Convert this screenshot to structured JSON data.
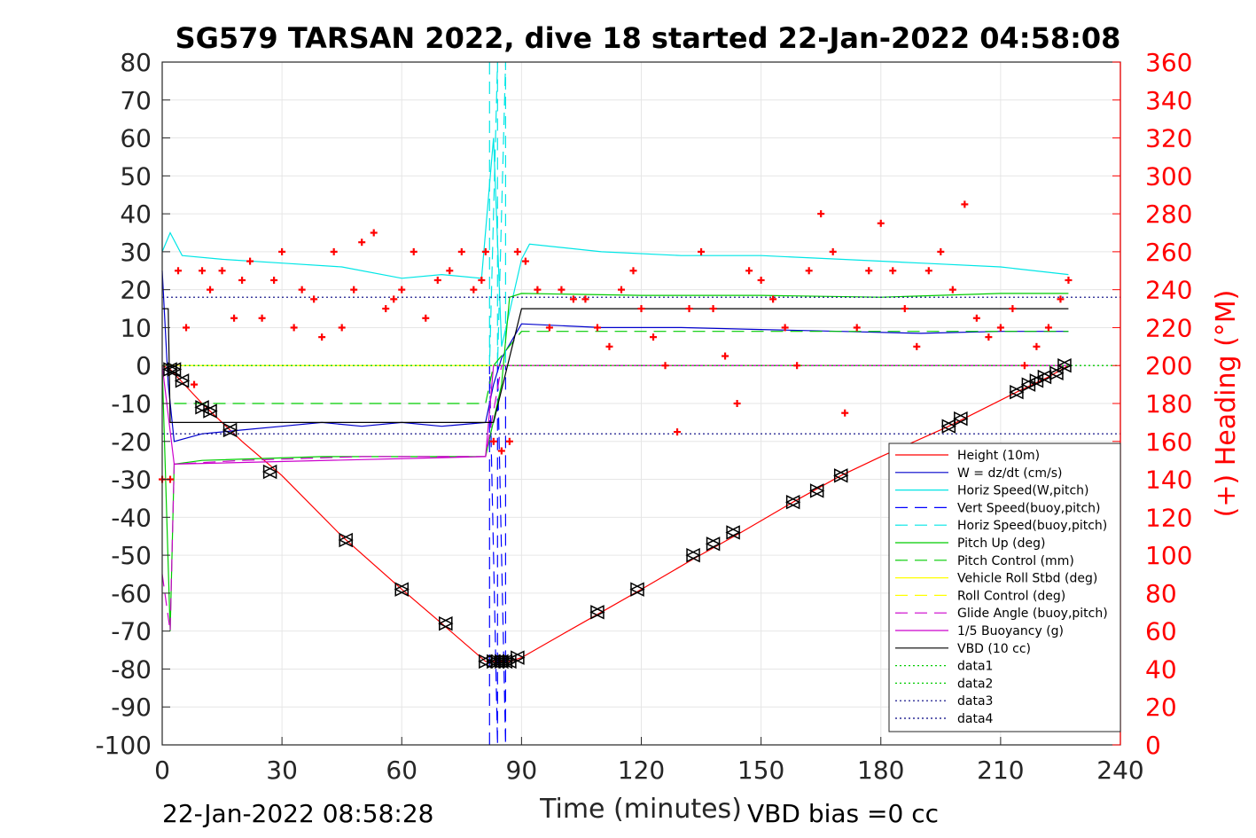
{
  "chart_data": {
    "type": "line",
    "title": "SG579 TARSAN 2022, dive 18 started 22-Jan-2022 04:58:08",
    "xlabel": "Time (minutes)",
    "ylabel_right": "(+) Heading (°M)",
    "xlim": [
      0,
      240
    ],
    "ylim_left": [
      -100,
      80
    ],
    "ylim_right": [
      0,
      360
    ],
    "x_ticks": [
      "0",
      "30",
      "60",
      "90",
      "120",
      "150",
      "180",
      "210",
      "240"
    ],
    "y_ticks_left": [
      "80",
      "70",
      "60",
      "50",
      "40",
      "30",
      "20",
      "10",
      "0",
      "-10",
      "-20",
      "-30",
      "-40",
      "-50",
      "-60",
      "-70",
      "-80",
      "-90",
      "-100"
    ],
    "y_ticks_right": [
      "360",
      "340",
      "320",
      "300",
      "280",
      "260",
      "240",
      "220",
      "200",
      "180",
      "160",
      "140",
      "120",
      "100",
      "80",
      "60",
      "40",
      "20",
      "0"
    ],
    "grid": true,
    "legend_position": "bottom-right",
    "footer_left": "22-Jan-2022 08:58:28",
    "footer_right": "VBD bias =0 cc",
    "series": [
      {
        "name": "Height (10m)",
        "color": "#ff0000",
        "style": "solid",
        "x": [
          0,
          2,
          10,
          20,
          30,
          45,
          60,
          70,
          81,
          84,
          87,
          90,
          100,
          110,
          120,
          133,
          145,
          158,
          170,
          180,
          197,
          214,
          222,
          227
        ],
        "y": [
          0,
          -1,
          -10,
          -20,
          -29,
          -45,
          -59,
          -68,
          -78,
          -78,
          -78,
          -77,
          -71,
          -65,
          -59,
          -51,
          -44,
          -36,
          -29,
          -24,
          -16,
          -7,
          -3,
          0
        ]
      },
      {
        "name": "W = dz/dt (cm/s)",
        "color": "#0000cc",
        "style": "solid",
        "x": [
          0,
          1.5,
          3,
          10,
          20,
          30,
          40,
          50,
          60,
          70,
          81,
          83,
          85,
          90,
          110,
          130,
          150,
          170,
          190,
          210,
          227
        ],
        "y": [
          25,
          -5,
          -20,
          -18,
          -17,
          -16,
          -15,
          -16,
          -15,
          -16,
          -15,
          -5,
          2,
          11,
          10,
          10,
          9.5,
          9,
          8.5,
          9,
          9
        ]
      },
      {
        "name": "Horiz Speed(W,pitch)",
        "color": "#00e6e6",
        "style": "solid",
        "x": [
          0,
          2,
          5,
          15,
          30,
          45,
          60,
          70,
          80,
          83,
          85,
          90,
          92,
          110,
          130,
          150,
          170,
          190,
          210,
          227
        ],
        "y": [
          30,
          35,
          29,
          28,
          27,
          26,
          23,
          24,
          23,
          60,
          5,
          28,
          32,
          30,
          29,
          29,
          28,
          27,
          26,
          24
        ]
      },
      {
        "name": "Vert Speed(buoy,pitch)",
        "color": "#0000ff",
        "style": "dashed",
        "x": [
          82,
          82,
          84,
          84,
          86,
          86
        ],
        "y": [
          -100,
          0,
          -100,
          0,
          -100,
          0
        ]
      },
      {
        "name": "Horiz Speed(buoy,pitch)",
        "color": "#00e6e6",
        "style": "dashed",
        "x": [
          82,
          82,
          84,
          84,
          86,
          86
        ],
        "y": [
          80,
          0,
          80,
          0,
          80,
          0
        ]
      },
      {
        "name": "Pitch Up (deg)",
        "color": "#00cc00",
        "style": "solid",
        "x": [
          0,
          2,
          3,
          10,
          40,
          70,
          81,
          85,
          87,
          90,
          120,
          150,
          180,
          210,
          227
        ],
        "y": [
          0,
          -70,
          -26,
          -25,
          -24,
          -24,
          -24,
          -5,
          18,
          19,
          18.5,
          18.5,
          18,
          19,
          19
        ]
      },
      {
        "name": "Pitch Control (mm)",
        "color": "#00cc00",
        "style": "dashed",
        "x": [
          3,
          81,
          83,
          90,
          227
        ],
        "y": [
          -10,
          -10,
          0,
          9,
          9
        ]
      },
      {
        "name": "Vehicle Roll Stbd (deg)",
        "color": "#ffff00",
        "style": "solid",
        "x": [
          0,
          5,
          100,
          200,
          227
        ],
        "y": [
          0,
          0,
          0,
          0,
          0
        ]
      },
      {
        "name": "Roll Control (deg)",
        "color": "#ffff00",
        "style": "dashed",
        "x": [
          0,
          227
        ],
        "y": [
          0,
          0
        ]
      },
      {
        "name": "Glide Angle (buoy,pitch)",
        "color": "#cc00cc",
        "style": "dashed",
        "x": [
          0,
          2,
          3,
          20,
          50,
          81,
          85,
          90,
          227
        ],
        "y": [
          -55,
          -70,
          -26,
          -25,
          -24,
          -24,
          0,
          0,
          0
        ]
      },
      {
        "name": "1/5 Buoyancy (g)",
        "color": "#cc00cc",
        "style": "solid",
        "x": [
          0,
          3,
          81,
          83,
          90,
          227
        ],
        "y": [
          0,
          -26,
          -24,
          0,
          0,
          0
        ]
      },
      {
        "name": "VBD (10 cc)",
        "color": "#000000",
        "style": "solid",
        "x": [
          0,
          1.5,
          2,
          80,
          81.5,
          83,
          90,
          227
        ],
        "y": [
          15,
          15,
          -15,
          -15,
          -15,
          -15,
          15,
          15
        ]
      },
      {
        "name": "data1",
        "color": "#00cc00",
        "style": "dotted",
        "x": [
          0,
          240
        ],
        "y": [
          0,
          0
        ]
      },
      {
        "name": "data2",
        "color": "#00cc00",
        "style": "dotted",
        "x": [
          0,
          240
        ],
        "y": [
          0,
          0
        ]
      },
      {
        "name": "data3",
        "color": "#000080",
        "style": "dotted",
        "x": [
          0,
          240
        ],
        "y": [
          18,
          18
        ]
      },
      {
        "name": "data4",
        "color": "#000080",
        "style": "dotted",
        "x": [
          0,
          240
        ],
        "y": [
          -18,
          -18
        ]
      },
      {
        "name": "",
        "color": "#ff0000",
        "style": "markers-plus",
        "axis": "right",
        "x": [
          0,
          2,
          4,
          6,
          8,
          10,
          12,
          15,
          18,
          20,
          22,
          25,
          28,
          30,
          33,
          35,
          38,
          40,
          43,
          45,
          48,
          50,
          53,
          56,
          58,
          60,
          63,
          66,
          69,
          72,
          75,
          78,
          80,
          81,
          83,
          85,
          87,
          89,
          91,
          94,
          97,
          100,
          103,
          106,
          109,
          112,
          115,
          118,
          120,
          123,
          126,
          129,
          132,
          135,
          138,
          141,
          144,
          147,
          150,
          153,
          156,
          159,
          162,
          165,
          168,
          171,
          174,
          177,
          180,
          183,
          186,
          189,
          192,
          195,
          198,
          201,
          204,
          207,
          210,
          213,
          216,
          219,
          222,
          225,
          227
        ],
        "y": [
          140,
          140,
          250,
          220,
          190,
          250,
          240,
          250,
          225,
          245,
          255,
          225,
          245,
          260,
          220,
          240,
          235,
          215,
          260,
          220,
          240,
          265,
          270,
          230,
          235,
          240,
          260,
          225,
          245,
          250,
          260,
          240,
          245,
          260,
          160,
          155,
          160,
          260,
          255,
          240,
          220,
          240,
          235,
          235,
          220,
          210,
          240,
          250,
          230,
          215,
          200,
          165,
          230,
          260,
          230,
          205,
          180,
          250,
          245,
          235,
          220,
          200,
          250,
          280,
          260,
          175,
          220,
          250,
          275,
          250,
          230,
          210,
          250,
          260,
          240,
          285,
          225,
          215,
          220,
          230,
          200,
          210,
          220,
          235,
          245
        ]
      }
    ],
    "markers": {
      "x": [
        2,
        3,
        5,
        10,
        12,
        17,
        27,
        46,
        60,
        71,
        81,
        83,
        84,
        85,
        86,
        87,
        89,
        109,
        119,
        133,
        138,
        143,
        158,
        164,
        170,
        197,
        200,
        214,
        217,
        219,
        221,
        224,
        226
      ],
      "y": [
        -1,
        -1,
        -4,
        -11,
        -12,
        -17,
        -28,
        -46,
        -59,
        -68,
        -78,
        -78,
        -78,
        -78,
        -78,
        -78,
        -77,
        -65,
        -59,
        -50,
        -47,
        -44,
        -36,
        -33,
        -29,
        -16,
        -14,
        -7,
        -5,
        -4,
        -3,
        -2,
        0
      ]
    }
  }
}
